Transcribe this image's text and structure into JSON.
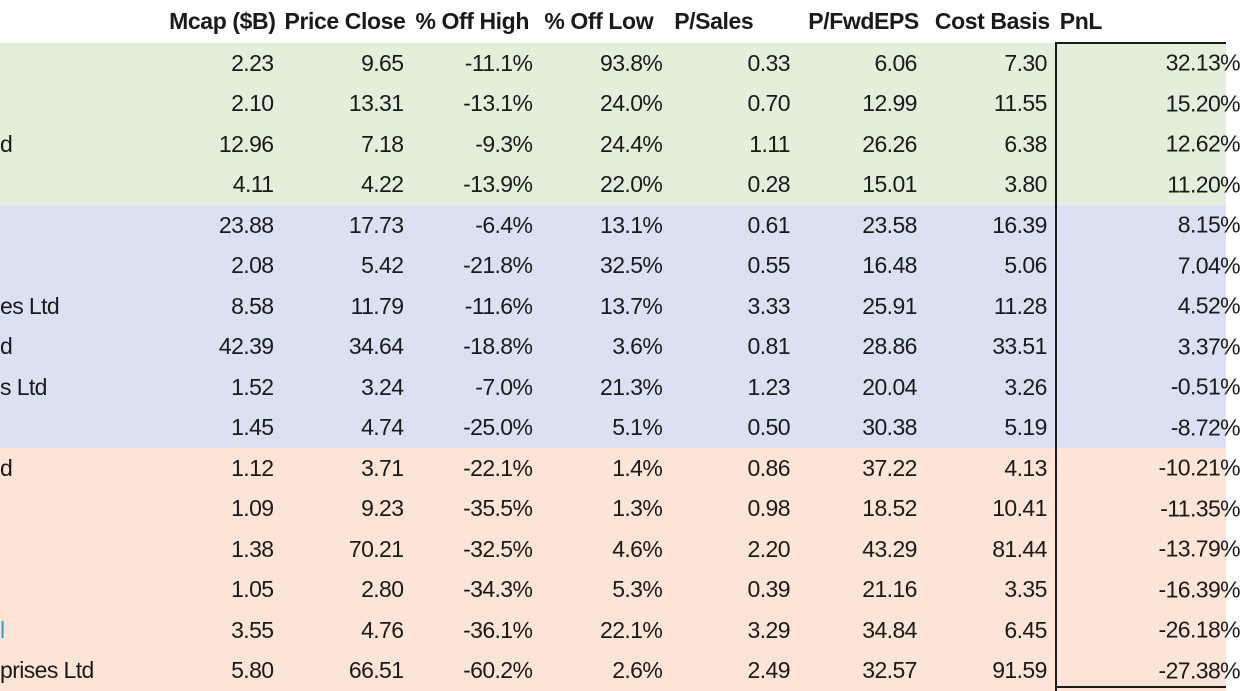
{
  "headers": {
    "mcap": "Mcap ($B)",
    "price_close": "Price Close",
    "off_high": "% Off High",
    "off_low": "% Off Low",
    "p_sales": "P/Sales",
    "p_fwdeps": "P/FwdEPS",
    "cost_basis": "Cost Basis",
    "pnl": "PnL"
  },
  "rows": [
    {
      "name": "",
      "mcap": "2.23",
      "price_close": "9.65",
      "off_high": "-11.1%",
      "off_low": "93.8%",
      "p_sales": "0.33",
      "p_fwdeps": "6.06",
      "cost_basis": "7.30",
      "pnl": "32.13%"
    },
    {
      "name": "",
      "mcap": "2.10",
      "price_close": "13.31",
      "off_high": "-13.1%",
      "off_low": "24.0%",
      "p_sales": "0.70",
      "p_fwdeps": "12.99",
      "cost_basis": "11.55",
      "pnl": "15.20%"
    },
    {
      "name": "d",
      "mcap": "12.96",
      "price_close": "7.18",
      "off_high": "-9.3%",
      "off_low": "24.4%",
      "p_sales": "1.11",
      "p_fwdeps": "26.26",
      "cost_basis": "6.38",
      "pnl": "12.62%"
    },
    {
      "name": "",
      "mcap": "4.11",
      "price_close": "4.22",
      "off_high": "-13.9%",
      "off_low": "22.0%",
      "p_sales": "0.28",
      "p_fwdeps": "15.01",
      "cost_basis": "3.80",
      "pnl": "11.20%"
    },
    {
      "name": "",
      "mcap": "23.88",
      "price_close": "17.73",
      "off_high": "-6.4%",
      "off_low": "13.1%",
      "p_sales": "0.61",
      "p_fwdeps": "23.58",
      "cost_basis": "16.39",
      "pnl": "8.15%"
    },
    {
      "name": "",
      "mcap": "2.08",
      "price_close": "5.42",
      "off_high": "-21.8%",
      "off_low": "32.5%",
      "p_sales": "0.55",
      "p_fwdeps": "16.48",
      "cost_basis": "5.06",
      "pnl": "7.04%"
    },
    {
      "name": "es Ltd",
      "mcap": "8.58",
      "price_close": "11.79",
      "off_high": "-11.6%",
      "off_low": "13.7%",
      "p_sales": "3.33",
      "p_fwdeps": "25.91",
      "cost_basis": "11.28",
      "pnl": "4.52%"
    },
    {
      "name": "d",
      "mcap": "42.39",
      "price_close": "34.64",
      "off_high": "-18.8%",
      "off_low": "3.6%",
      "p_sales": "0.81",
      "p_fwdeps": "28.86",
      "cost_basis": "33.51",
      "pnl": "3.37%"
    },
    {
      "name": "s Ltd",
      "mcap": "1.52",
      "price_close": "3.24",
      "off_high": "-7.0%",
      "off_low": "21.3%",
      "p_sales": "1.23",
      "p_fwdeps": "20.04",
      "cost_basis": "3.26",
      "pnl": "-0.51%"
    },
    {
      "name": "",
      "mcap": "1.45",
      "price_close": "4.74",
      "off_high": "-25.0%",
      "off_low": "5.1%",
      "p_sales": "0.50",
      "p_fwdeps": "30.38",
      "cost_basis": "5.19",
      "pnl": "-8.72%"
    },
    {
      "name": "d",
      "mcap": "1.12",
      "price_close": "3.71",
      "off_high": "-22.1%",
      "off_low": "1.4%",
      "p_sales": "0.86",
      "p_fwdeps": "37.22",
      "cost_basis": "4.13",
      "pnl": "-10.21%"
    },
    {
      "name": "",
      "mcap": "1.09",
      "price_close": "9.23",
      "off_high": "-35.5%",
      "off_low": "1.3%",
      "p_sales": "0.98",
      "p_fwdeps": "18.52",
      "cost_basis": "10.41",
      "pnl": "-11.35%"
    },
    {
      "name": "",
      "mcap": "1.38",
      "price_close": "70.21",
      "off_high": "-32.5%",
      "off_low": "4.6%",
      "p_sales": "2.20",
      "p_fwdeps": "43.29",
      "cost_basis": "81.44",
      "pnl": "-13.79%"
    },
    {
      "name": "",
      "mcap": "1.05",
      "price_close": "2.80",
      "off_high": "-34.3%",
      "off_low": "5.3%",
      "p_sales": "0.39",
      "p_fwdeps": "21.16",
      "cost_basis": "3.35",
      "pnl": "-16.39%"
    },
    {
      "name": "l",
      "mcap": "3.55",
      "price_close": "4.76",
      "off_high": "-36.1%",
      "off_low": "22.1%",
      "p_sales": "3.29",
      "p_fwdeps": "34.84",
      "cost_basis": "6.45",
      "pnl": "-26.18%"
    },
    {
      "name": "prises Ltd",
      "mcap": "5.80",
      "price_close": "66.51",
      "off_high": "-60.2%",
      "off_low": "2.6%",
      "p_sales": "2.49",
      "p_fwdeps": "32.57",
      "cost_basis": "91.59",
      "pnl": "-27.38%"
    }
  ],
  "colors": {
    "group_green": "#e2efda",
    "group_blue": "#d9e1f2",
    "group_red": "#fce4d6",
    "link": "#2a9fd6"
  }
}
